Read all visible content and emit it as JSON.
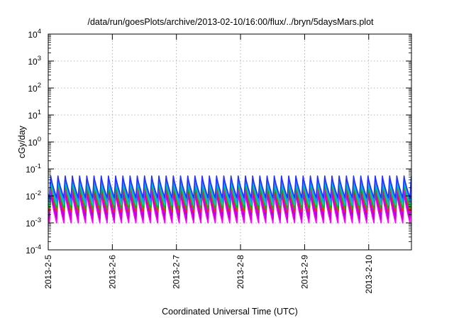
{
  "chart_data": {
    "type": "line",
    "title": "/data/run/goesPlots/archive/2013-02-10/16:00/flux/../bryn/5daysMars.plot",
    "xlabel": "Coordinated Universal Time (UTC)",
    "ylabel": "cGy/day",
    "yscale": "log",
    "ylim": [
      0.0001,
      10000
    ],
    "y_ticks": [
      {
        "value": 0.0001,
        "base": "10",
        "exp": "-4"
      },
      {
        "value": 0.001,
        "base": "10",
        "exp": "-3"
      },
      {
        "value": 0.01,
        "base": "10",
        "exp": "-2"
      },
      {
        "value": 0.1,
        "base": "10",
        "exp": "-1"
      },
      {
        "value": 1,
        "base": "10",
        "exp": "0"
      },
      {
        "value": 10,
        "base": "10",
        "exp": "1"
      },
      {
        "value": 100,
        "base": "10",
        "exp": "2"
      },
      {
        "value": 1000,
        "base": "10",
        "exp": "3"
      },
      {
        "value": 10000,
        "base": "10",
        "exp": "4"
      }
    ],
    "xlim": [
      "2013-02-05T00:00",
      "2013-02-10T16:00"
    ],
    "x_ticks": [
      {
        "value": "2013-02-05T00:00",
        "label": "2013-2-5"
      },
      {
        "value": "2013-02-06T00:00",
        "label": "2013-2-6"
      },
      {
        "value": "2013-02-07T00:00",
        "label": "2013-2-7"
      },
      {
        "value": "2013-02-08T00:00",
        "label": "2013-2-8"
      },
      {
        "value": "2013-02-09T00:00",
        "label": "2013-2-9"
      },
      {
        "value": "2013-02-10T00:00",
        "label": "2013-2-10"
      }
    ],
    "grid": true,
    "legend": "none",
    "pattern": {
      "period_hours": 2.7,
      "sawtooth": "rapid rise then decay within each period"
    },
    "series": [
      {
        "color": "#ff00ff",
        "peak": 0.013,
        "trough": 0.001
      },
      {
        "color": "#cc00cc",
        "peak": 0.016,
        "trough": 0.0014
      },
      {
        "color": "#aa00ff",
        "peak": 0.02,
        "trough": 0.0019
      },
      {
        "color": "#ff2020",
        "peak": 0.025,
        "trough": 0.0025
      },
      {
        "color": "#00c000",
        "peak": 0.03,
        "trough": 0.0034
      },
      {
        "color": "#00cccc",
        "peak": 0.038,
        "trough": 0.0046
      },
      {
        "color": "#1e90ff",
        "peak": 0.045,
        "trough": 0.0062
      },
      {
        "color": "#2030ff",
        "peak": 0.055,
        "trough": 0.0085
      }
    ]
  }
}
